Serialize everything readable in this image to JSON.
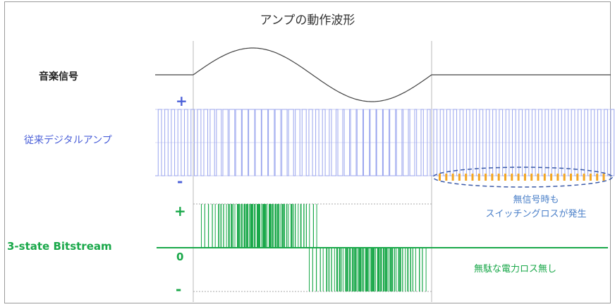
{
  "title": "アンプの動作波形",
  "labels": {
    "music_signal": "音楽信号",
    "conventional_amp": "従来デジタルアンプ",
    "three_state": "3-state Bitstream"
  },
  "signs": {
    "conv_plus": "+",
    "conv_minus": "-",
    "tri_plus": "+",
    "tri_zero": "0",
    "tri_minus": "-"
  },
  "notes": {
    "no_signal_loss_line1": "無信号時も",
    "no_signal_loss_line2": "スイッチングロスが発生",
    "no_waste": "無駄な電力ロス無し"
  },
  "colors": {
    "blue": "#4a5fd8",
    "light_blue": "#9ba6ee",
    "green": "#1aa84a",
    "dark": "#333333",
    "ellipse_fill": "#f3a623"
  }
}
